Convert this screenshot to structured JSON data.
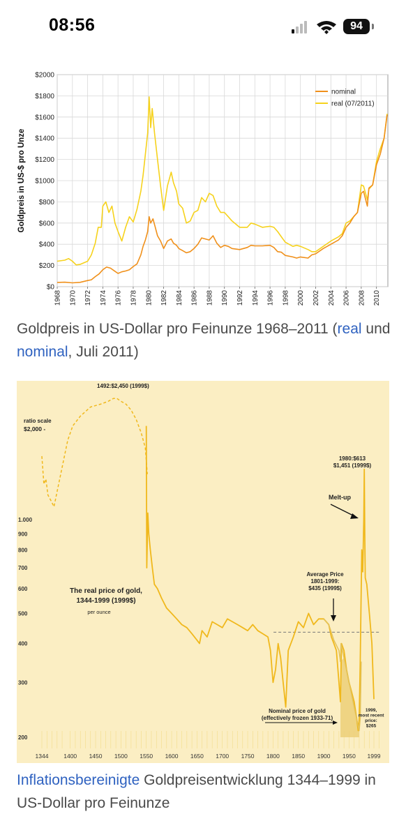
{
  "status_bar": {
    "time": "08:56",
    "battery": "94"
  },
  "figures": [
    {
      "caption": {
        "part1": "Goldpreis in US-Dollar pro Feinunze 1968–2011 (",
        "link1": "real",
        "part2": " und ",
        "link2": "nominal",
        "part3": ", Juli 2011)"
      }
    },
    {
      "caption": {
        "link1": "Inflationsbereinigte",
        "part1": " Goldpreisentwicklung 1344–1999 in US-Dollar pro Feinunze"
      }
    }
  ],
  "chart_data": [
    {
      "type": "line",
      "ylabel": "Goldpreis in US-$ pro Unze",
      "xlabel": "",
      "ylim": [
        0,
        2000
      ],
      "xlim": [
        1968,
        2011.5
      ],
      "yticks": [
        "$0",
        "$200",
        "$400",
        "$600",
        "$800",
        "$1000",
        "$1200",
        "$1400",
        "$1600",
        "$1800",
        "$2000"
      ],
      "xticks": [
        "1968",
        "1970",
        "1972",
        "1974",
        "1976",
        "1978",
        "1980",
        "1982",
        "1984",
        "1986",
        "1988",
        "1990",
        "1992",
        "1994",
        "1996",
        "1998",
        "2000",
        "2002",
        "2004",
        "2006",
        "2008",
        "2010"
      ],
      "grid": true,
      "legend_position": "top-right",
      "series": [
        {
          "name": "nominal",
          "color": "#f0901a",
          "x": [
            1968,
            1969,
            1970,
            1971,
            1972,
            1972.5,
            1973,
            1973.5,
            1974,
            1974.5,
            1975,
            1975.5,
            1976,
            1976.5,
            1977,
            1977.5,
            1978,
            1978.5,
            1979,
            1979.3,
            1979.6,
            1979.9,
            1980.1,
            1980.3,
            1980.6,
            1980.9,
            1981.2,
            1981.6,
            1982,
            1982.5,
            1983,
            1983.3,
            1983.7,
            1984,
            1984.5,
            1985,
            1985.5,
            1986,
            1986.5,
            1987,
            1987.5,
            1988,
            1988.5,
            1989,
            1989.5,
            1990,
            1990.5,
            1991,
            1992,
            1993,
            1993.5,
            1994,
            1995,
            1996,
            1996.5,
            1997,
            1997.5,
            1998,
            1999,
            1999.5,
            2000,
            2001,
            2001.5,
            2002,
            2003,
            2004,
            2005,
            2005.5,
            2006,
            2006.5,
            2007,
            2007.5,
            2008,
            2008.3,
            2008.8,
            2009,
            2009.5,
            2010,
            2010.5,
            2011,
            2011.4
          ],
          "y": [
            40,
            42,
            36,
            41,
            58,
            65,
            95,
            120,
            160,
            185,
            175,
            150,
            125,
            140,
            148,
            160,
            190,
            215,
            300,
            380,
            440,
            520,
            660,
            600,
            640,
            560,
            480,
            430,
            360,
            430,
            450,
            410,
            390,
            360,
            340,
            320,
            330,
            360,
            400,
            460,
            450,
            440,
            480,
            410,
            370,
            390,
            380,
            360,
            350,
            370,
            390,
            385,
            385,
            390,
            370,
            330,
            325,
            295,
            280,
            270,
            280,
            270,
            300,
            310,
            360,
            400,
            440,
            480,
            560,
            600,
            660,
            700,
            880,
            900,
            760,
            930,
            960,
            1150,
            1250,
            1400,
            1620
          ]
        },
        {
          "name": "real (07/2011)",
          "color": "#f6d21c",
          "x": [
            1968,
            1969,
            1969.5,
            1970,
            1970.5,
            1971,
            1972,
            1972.5,
            1973,
            1973.4,
            1973.8,
            1974,
            1974.4,
            1974.8,
            1975.2,
            1975.6,
            1976,
            1976.5,
            1977,
            1977.5,
            1978,
            1978.5,
            1979,
            1979.3,
            1979.6,
            1979.9,
            1980.1,
            1980.3,
            1980.5,
            1980.8,
            1981.2,
            1981.6,
            1982,
            1982.5,
            1983,
            1983.3,
            1983.7,
            1984,
            1984.5,
            1985,
            1985.5,
            1986,
            1986.5,
            1987,
            1987.5,
            1988,
            1988.5,
            1989,
            1989.5,
            1990,
            1990.5,
            1991,
            1992,
            1993,
            1993.5,
            1994,
            1995,
            1996,
            1996.5,
            1997,
            1997.5,
            1998,
            1999,
            1999.5,
            2000,
            2001,
            2001.5,
            2002,
            2003,
            2004,
            2005,
            2005.5,
            2006,
            2006.5,
            2007,
            2007.5,
            2008,
            2008.3,
            2008.8,
            2009,
            2009.5,
            2010,
            2010.5,
            2011,
            2011.4
          ],
          "y": [
            240,
            250,
            265,
            240,
            205,
            210,
            240,
            300,
            410,
            560,
            560,
            760,
            800,
            700,
            760,
            600,
            520,
            430,
            560,
            660,
            610,
            730,
            900,
            1050,
            1250,
            1450,
            1790,
            1500,
            1680,
            1450,
            1200,
            950,
            720,
            950,
            1080,
            980,
            900,
            780,
            740,
            600,
            620,
            700,
            720,
            840,
            800,
            880,
            860,
            760,
            700,
            700,
            660,
            620,
            560,
            560,
            600,
            590,
            560,
            570,
            560,
            520,
            470,
            420,
            380,
            390,
            380,
            350,
            330,
            330,
            380,
            430,
            470,
            500,
            600,
            620,
            660,
            700,
            960,
            950,
            820,
            920,
            960,
            1180,
            1300,
            1400,
            1630
          ]
        }
      ]
    },
    {
      "type": "line",
      "title": "The real price of gold, 1344-1999 (1999$)",
      "subtitle": "per ounce",
      "scale_label": "ratio scale",
      "scale_top_label": "$2,000 -",
      "log_scale": true,
      "ylim": [
        190,
        2600
      ],
      "xlim": [
        1330,
        2010
      ],
      "yticks": [
        "1.000",
        "900",
        "800",
        "700",
        "600",
        "500",
        "400",
        "300",
        "200"
      ],
      "ytick_values": [
        1000,
        900,
        800,
        700,
        600,
        500,
        400,
        300,
        200
      ],
      "xticks": [
        "1344",
        "1400",
        "1450",
        "1500",
        "1550",
        "1600",
        "1650",
        "1700",
        "1750",
        "1800",
        "1850",
        "1900",
        "1950",
        "1999"
      ],
      "xtick_values": [
        1344,
        1400,
        1450,
        1500,
        1550,
        1600,
        1650,
        1700,
        1750,
        1800,
        1850,
        1900,
        1950,
        1999
      ],
      "average_price": 435,
      "average_label": "Average Price\n1801-1999:\n$435 (1999$)",
      "peak_label": "1492:$2,450 (1999$)",
      "peak_1980_label": "1980:$613\n$1,451 (1999$)",
      "meltup_label": "Melt-up",
      "nominal_label": "Nominal price of gold\n(effectively frozen 1933-71)",
      "recent_label": "1999,\nmost recent\nprice:\n$265",
      "series": [
        {
          "name": "real price (dashed, uncertain)",
          "color": "#f0b81c",
          "x": [
            1344,
            1348,
            1352,
            1356,
            1362,
            1368,
            1375,
            1385,
            1395,
            1405,
            1420,
            1440,
            1460,
            1475,
            1485,
            1492,
            1500,
            1510,
            1520,
            1530,
            1540,
            1548,
            1552
          ],
          "y": [
            1600,
            1300,
            1350,
            1200,
            1150,
            1100,
            1250,
            1500,
            1800,
            2000,
            2150,
            2300,
            2350,
            2400,
            2450,
            2450,
            2400,
            2350,
            2250,
            2100,
            1900,
            1700,
            1400
          ]
        },
        {
          "name": "real price",
          "color": "#f0b81c",
          "x": [
            1550,
            1551,
            1553,
            1555,
            1558,
            1562,
            1566,
            1572,
            1580,
            1590,
            1600,
            1610,
            1620,
            1630,
            1640,
            1650,
            1655,
            1660,
            1670,
            1680,
            1690,
            1700,
            1710,
            1720,
            1730,
            1740,
            1750,
            1760,
            1770,
            1780,
            1790,
            1795,
            1800,
            1805,
            1810,
            1815,
            1820,
            1825,
            1830,
            1840,
            1850,
            1860,
            1870,
            1880,
            1890,
            1900,
            1910,
            1915,
            1920,
            1925,
            1930,
            1933,
            1935,
            1940,
            1945,
            1950,
            1955,
            1960,
            1965,
            1968,
            1970,
            1972,
            1974,
            1975,
            1977,
            1979,
            1980,
            1981,
            1982,
            1985,
            1990,
            1995,
            1999
          ],
          "y": [
            2000,
            700,
            1050,
            900,
            800,
            700,
            620,
            600,
            560,
            520,
            500,
            480,
            460,
            450,
            430,
            410,
            400,
            440,
            420,
            470,
            460,
            450,
            480,
            470,
            460,
            450,
            440,
            460,
            440,
            430,
            420,
            380,
            300,
            330,
            400,
            360,
            300,
            250,
            380,
            420,
            470,
            450,
            500,
            460,
            480,
            480,
            460,
            420,
            400,
            380,
            300,
            260,
            400,
            380,
            330,
            300,
            280,
            260,
            230,
            210,
            230,
            350,
            600,
            800,
            680,
            1000,
            1451,
            900,
            650,
            620,
            500,
            400,
            265
          ]
        },
        {
          "name": "nominal price of gold",
          "color": "#e3c25a",
          "x": [
            1900,
            1910,
            1920,
            1930,
            1933,
            1934,
            1940,
            1950,
            1960,
            1970,
            1972,
            1974
          ],
          "y": [
            480,
            460,
            410,
            380,
            350,
            400,
            360,
            300,
            250,
            210,
            230,
            350
          ]
        }
      ]
    }
  ]
}
